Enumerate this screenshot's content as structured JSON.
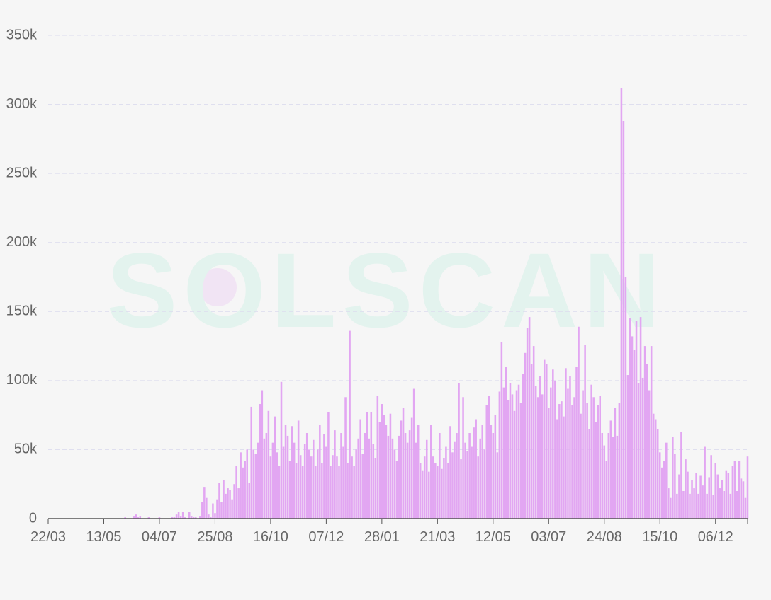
{
  "chart_data": {
    "type": "bar",
    "watermark": "SOLSCAN",
    "color": "#e2a6f2",
    "ylim": [
      0,
      350000
    ],
    "yticks": [
      0,
      {
        "value": 50000,
        "label": "50k"
      },
      {
        "value": 100000,
        "label": "100k"
      },
      {
        "value": 150000,
        "label": "150k"
      },
      {
        "value": 200000,
        "label": "200k"
      },
      {
        "value": 250000,
        "label": "250k"
      },
      {
        "value": 300000,
        "label": "300k"
      },
      {
        "value": 350000,
        "label": "350k"
      }
    ],
    "grid": true,
    "categories": [
      "22/03",
      null,
      null,
      null,
      null,
      null,
      null,
      null,
      null,
      null,
      null,
      null,
      null,
      null,
      null,
      null,
      null,
      null,
      null,
      null,
      null,
      null,
      null,
      null,
      null,
      null,
      "13/05",
      null,
      null,
      null,
      null,
      null,
      null,
      null,
      null,
      null,
      null,
      null,
      null,
      null,
      null,
      null,
      null,
      null,
      null,
      null,
      null,
      null,
      null,
      null,
      null,
      null,
      "04/07",
      null,
      null,
      null,
      null,
      null,
      null,
      null,
      null,
      null,
      null,
      null,
      null,
      null,
      null,
      null,
      null,
      null,
      null,
      null,
      null,
      null,
      null,
      null,
      null,
      null,
      "25/08",
      null,
      null,
      null,
      null,
      null,
      null,
      null,
      null,
      null,
      null,
      null,
      null,
      null,
      null,
      null,
      null,
      null,
      null,
      null,
      null,
      null,
      null,
      null,
      null,
      null,
      "16/10",
      null,
      null,
      null,
      null,
      null,
      null,
      null,
      null,
      null,
      null,
      null,
      null,
      null,
      null,
      null,
      null,
      null,
      null,
      null,
      null,
      null,
      null,
      null,
      null,
      null,
      "07/12",
      null,
      null,
      null,
      null,
      null,
      null,
      null,
      null,
      null,
      null,
      null,
      null,
      null,
      null,
      null,
      null,
      null,
      null,
      null,
      null,
      null,
      null,
      null,
      null,
      null,
      "28/01",
      null,
      null,
      null,
      null,
      null,
      null,
      null,
      null,
      null,
      null,
      null,
      null,
      null,
      null,
      null,
      null,
      null,
      null,
      null,
      null,
      null,
      null,
      null,
      null,
      null,
      "21/03",
      null,
      null,
      null,
      null,
      null,
      null,
      null,
      null,
      null,
      null,
      null,
      null,
      null,
      null,
      null,
      null,
      null,
      null,
      null,
      null,
      null,
      null,
      null,
      null,
      null,
      "12/05",
      null,
      null,
      null,
      null,
      null,
      null,
      null,
      null,
      null,
      null,
      null,
      null,
      null,
      null,
      null,
      null,
      null,
      null,
      null,
      null,
      null,
      null,
      null,
      null,
      null,
      "03/07",
      null,
      null,
      null,
      null,
      null,
      null,
      null,
      null,
      null,
      null,
      null,
      null,
      null,
      null,
      null,
      null,
      null,
      null,
      null,
      null,
      null,
      null,
      null,
      null,
      null,
      "24/08",
      null,
      null,
      null,
      null,
      null,
      null,
      null,
      null,
      null,
      null,
      null,
      null,
      null,
      null,
      null,
      null,
      null,
      null,
      null,
      null,
      null,
      null,
      null,
      null,
      null,
      "15/10",
      null,
      null,
      null,
      null,
      null,
      null,
      null,
      null,
      null,
      null,
      null,
      null,
      null,
      null,
      null,
      null,
      null,
      null,
      null,
      null,
      null,
      null,
      null,
      null,
      null,
      "06/12",
      null,
      null,
      null,
      null,
      null,
      null,
      null,
      null,
      null,
      null,
      null,
      null,
      null,
      null,
      null
    ],
    "values": [
      0,
      0,
      0,
      0,
      0,
      0,
      0,
      0,
      0,
      0,
      0,
      0,
      0,
      0,
      0,
      0,
      0,
      0,
      0,
      0,
      0,
      0,
      0,
      0,
      0,
      0,
      0,
      0,
      0,
      0,
      0,
      0,
      0,
      0,
      0,
      0,
      1000,
      0,
      0,
      0,
      2000,
      3000,
      1000,
      2000,
      0,
      0,
      0,
      1000,
      0,
      0,
      0,
      0,
      1000,
      0,
      0,
      0,
      0,
      0,
      1000,
      1000,
      3000,
      5000,
      2000,
      5000,
      1000,
      0,
      5000,
      2000,
      1000,
      1000,
      0,
      2000,
      12000,
      23000,
      15000,
      3000,
      1000,
      11000,
      4000,
      14000,
      26000,
      12000,
      28000,
      18000,
      22000,
      21000,
      14000,
      25000,
      38000,
      22000,
      48000,
      37000,
      42000,
      50000,
      26000,
      81000,
      50000,
      47000,
      55000,
      83000,
      93000,
      58000,
      62000,
      78000,
      45000,
      55000,
      74000,
      48000,
      38000,
      99000,
      52000,
      68000,
      60000,
      42000,
      67000,
      55000,
      40000,
      71000,
      46000,
      38000,
      54000,
      62000,
      50000,
      45000,
      57000,
      38000,
      50000,
      68000,
      40000,
      61000,
      52000,
      77000,
      38000,
      46000,
      64000,
      45000,
      38000,
      62000,
      52000,
      88000,
      40000,
      136000,
      45000,
      38000,
      50000,
      58000,
      72000,
      47000,
      62000,
      77000,
      58000,
      77000,
      54000,
      44000,
      89000,
      70000,
      83000,
      75000,
      68000,
      60000,
      76000,
      58000,
      50000,
      42000,
      60000,
      71000,
      80000,
      62000,
      55000,
      64000,
      73000,
      94000,
      55000,
      68000,
      40000,
      35000,
      45000,
      57000,
      34000,
      68000,
      45000,
      40000,
      38000,
      62000,
      36000,
      44000,
      52000,
      40000,
      67000,
      48000,
      56000,
      62000,
      98000,
      43000,
      88000,
      55000,
      49000,
      62000,
      52000,
      66000,
      72000,
      45000,
      58000,
      68000,
      50000,
      82000,
      89000,
      68000,
      62000,
      75000,
      48000,
      92000,
      128000,
      95000,
      110000,
      86000,
      98000,
      90000,
      78000,
      93000,
      97000,
      84000,
      105000,
      120000,
      138000,
      146000,
      112000,
      125000,
      96000,
      88000,
      103000,
      90000,
      115000,
      112000,
      80000,
      95000,
      108000,
      100000,
      72000,
      83000,
      85000,
      74000,
      109000,
      94000,
      103000,
      82000,
      88000,
      110000,
      139000,
      76000,
      93000,
      126000,
      84000,
      65000,
      97000,
      88000,
      70000,
      82000,
      89000,
      62000,
      53000,
      42000,
      62000,
      71000,
      59000,
      80000,
      60000,
      84000,
      312000,
      288000,
      175000,
      104000,
      145000,
      132000,
      122000,
      143000,
      98000,
      146000,
      102000,
      125000,
      112000,
      93000,
      125000,
      76000,
      72000,
      65000,
      48000,
      37000,
      42000,
      55000,
      22000,
      15000,
      59000,
      47000,
      18000,
      32000,
      63000,
      20000,
      43000,
      34000,
      18000,
      28000,
      22000,
      33000,
      18000,
      31000,
      24000,
      52000,
      18000,
      30000,
      46000,
      17000,
      40000,
      32000,
      22000,
      28000,
      20000,
      35000,
      33000,
      18000,
      38000,
      42000,
      20000,
      42000,
      29000,
      27000,
      15000,
      45000
    ]
  }
}
